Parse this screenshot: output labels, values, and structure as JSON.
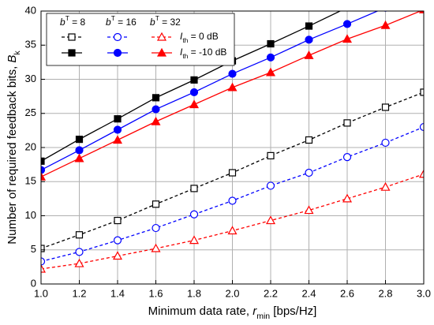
{
  "chart_data": {
    "type": "line",
    "x_label": {
      "parts": [
        {
          "t": "Minimum data rate, "
        },
        {
          "t": "r",
          "italic": true
        },
        {
          "t": "min",
          "sub": true
        },
        {
          "t": " [bps/Hz]"
        }
      ]
    },
    "y_label": {
      "parts": [
        {
          "t": "Number of required feedback bits, "
        },
        {
          "t": "B",
          "italic": true
        },
        {
          "t": "k",
          "sub": true
        }
      ]
    },
    "x": [
      1.0,
      1.2,
      1.4,
      1.6,
      1.8,
      2.0,
      2.2,
      2.4,
      2.6,
      2.8,
      3.0
    ],
    "xlim": [
      1.0,
      3.0
    ],
    "xticks": [
      {
        "value": 1.0,
        "label": "1.0"
      },
      {
        "value": 1.2,
        "label": "1.2"
      },
      {
        "value": 1.4,
        "label": "1.4"
      },
      {
        "value": 1.6,
        "label": "1.6"
      },
      {
        "value": 1.8,
        "label": "1.8"
      },
      {
        "value": 2.0,
        "label": "2.0"
      },
      {
        "value": 2.2,
        "label": "2.2"
      },
      {
        "value": 2.4,
        "label": "2.4"
      },
      {
        "value": 2.6,
        "label": "2.6"
      },
      {
        "value": 2.8,
        "label": "2.8"
      },
      {
        "value": 3.0,
        "label": "3.0"
      }
    ],
    "ylim": [
      0,
      40
    ],
    "yticks": [
      0,
      5,
      10,
      15,
      20,
      25,
      30,
      35,
      40
    ],
    "grid": true,
    "legend_position": "upper left",
    "legend": {
      "columns": [
        {
          "parts": [
            {
              "t": "b",
              "italic": true
            },
            {
              "t": "T",
              "sup": true
            },
            {
              "t": " = 8"
            }
          ]
        },
        {
          "parts": [
            {
              "t": "b",
              "italic": true
            },
            {
              "t": "T",
              "sup": true
            },
            {
              "t": " = 16"
            }
          ]
        },
        {
          "parts": [
            {
              "t": "b",
              "italic": true
            },
            {
              "t": "T",
              "sup": true
            },
            {
              "t": " = 32"
            }
          ]
        }
      ],
      "rows": [
        {
          "parts": [
            {
              "t": "I",
              "italic": true
            },
            {
              "t": "th",
              "sub": true
            },
            {
              "t": " = 0 dB"
            }
          ]
        },
        {
          "parts": [
            {
              "t": "I",
              "italic": true
            },
            {
              "t": "th",
              "sub": true
            },
            {
              "t": " = -10 dB"
            }
          ]
        }
      ]
    },
    "series": [
      {
        "color": "#000000",
        "marker": "square",
        "filled": false,
        "dashed": true,
        "values": [
          5.2,
          7.2,
          9.3,
          11.7,
          14.0,
          16.3,
          18.8,
          21.1,
          23.6,
          25.9,
          28.1
        ]
      },
      {
        "color": "#0000ff",
        "marker": "circle",
        "filled": false,
        "dashed": true,
        "values": [
          3.3,
          4.7,
          6.4,
          8.2,
          10.2,
          12.2,
          14.4,
          16.3,
          18.6,
          20.7,
          23.0
        ]
      },
      {
        "color": "#ff0000",
        "marker": "triangle",
        "filled": false,
        "dashed": true,
        "values": [
          2.2,
          3.0,
          4.1,
          5.2,
          6.4,
          7.8,
          9.3,
          10.8,
          12.5,
          14.2,
          16.1
        ]
      },
      {
        "color": "#000000",
        "marker": "square",
        "filled": true,
        "dashed": false,
        "values": [
          18.0,
          21.2,
          24.2,
          27.3,
          29.9,
          32.7,
          35.2,
          37.8,
          40.5,
          null,
          null
        ]
      },
      {
        "color": "#0000ff",
        "marker": "circle",
        "filled": true,
        "dashed": false,
        "values": [
          16.7,
          19.6,
          22.6,
          25.6,
          28.1,
          30.8,
          33.2,
          35.8,
          38.1,
          40.5,
          null
        ]
      },
      {
        "color": "#ff0000",
        "marker": "triangle",
        "filled": true,
        "dashed": false,
        "values": [
          15.7,
          18.4,
          21.1,
          23.8,
          26.3,
          28.8,
          31.0,
          33.5,
          35.9,
          37.9,
          40.2
        ]
      }
    ]
  }
}
